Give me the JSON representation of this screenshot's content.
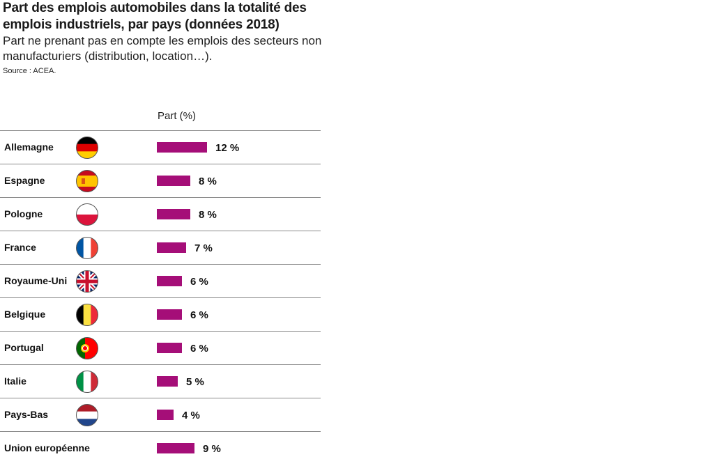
{
  "header": {
    "title": "Part des emplois automobiles dans la totalité des emplois industriels, par pays (données 2018)",
    "subtitle": "Part ne prenant pas en compte les emplois des secteurs non manufacturiers (distribution, location…).",
    "source": "Source : ACEA."
  },
  "colors": {
    "bar": "#a50e78",
    "rule": "#8a8a8a"
  },
  "chart_data": {
    "type": "bar",
    "orientation": "horizontal",
    "column_label": "Part (%)",
    "categories": [
      "Allemagne",
      "Espagne",
      "Pologne",
      "France",
      "Royaume-Uni",
      "Belgique",
      "Portugal",
      "Italie",
      "Pays-Bas",
      "Union européenne"
    ],
    "values": [
      12,
      8,
      8,
      7,
      6,
      6,
      6,
      5,
      4,
      9
    ],
    "value_labels": [
      "12 %",
      "8 %",
      "8 %",
      "7 %",
      "6 %",
      "6 %",
      "6 %",
      "5 %",
      "4 %",
      "9 %"
    ],
    "flags": [
      "germany-flag-icon",
      "spain-flag-icon",
      "poland-flag-icon",
      "france-flag-icon",
      "uk-flag-icon",
      "belgium-flag-icon",
      "portugal-flag-icon",
      "italy-flag-icon",
      "netherlands-flag-icon",
      ""
    ],
    "grid": false,
    "legend": "none"
  }
}
